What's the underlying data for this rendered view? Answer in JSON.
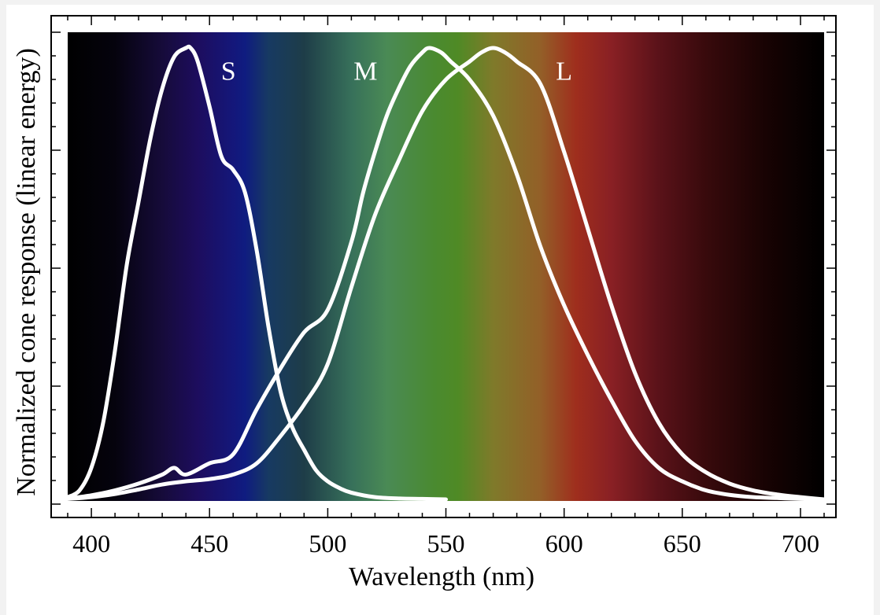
{
  "chart_data": {
    "type": "line",
    "title": "",
    "xlabel": "Wavelength (nm)",
    "ylabel": "Normalized cone response (linear energy)",
    "xlim": [
      383,
      715
    ],
    "ylim": [
      0,
      1
    ],
    "x_ticks": [
      400,
      450,
      500,
      550,
      600,
      650,
      700
    ],
    "x_tick_labels": [
      "400",
      "450",
      "500",
      "550",
      "600",
      "650",
      "700"
    ],
    "y_tick_labels": [],
    "grid": false,
    "legend": "labels placed next to curve peaks",
    "background": "visible spectrum color gradient from 390 nm to 710 nm",
    "spectrum_stops": [
      {
        "nm": 390,
        "color": "#000000"
      },
      {
        "nm": 410,
        "color": "#05030d"
      },
      {
        "nm": 430,
        "color": "#160b3a"
      },
      {
        "nm": 445,
        "color": "#1d0d5e"
      },
      {
        "nm": 460,
        "color": "#14177a"
      },
      {
        "nm": 465,
        "color": "#0f1c80"
      },
      {
        "nm": 475,
        "color": "#173a62"
      },
      {
        "nm": 490,
        "color": "#1e3d48"
      },
      {
        "nm": 510,
        "color": "#37705a"
      },
      {
        "nm": 525,
        "color": "#4a8a55"
      },
      {
        "nm": 545,
        "color": "#4a8a30"
      },
      {
        "nm": 555,
        "color": "#4f8a25"
      },
      {
        "nm": 570,
        "color": "#7f7a2a"
      },
      {
        "nm": 590,
        "color": "#935f28"
      },
      {
        "nm": 605,
        "color": "#9f2e1d"
      },
      {
        "nm": 620,
        "color": "#892024"
      },
      {
        "nm": 640,
        "color": "#5a1219"
      },
      {
        "nm": 660,
        "color": "#380a0c"
      },
      {
        "nm": 685,
        "color": "#180303"
      },
      {
        "nm": 710,
        "color": "#000000"
      }
    ],
    "series": [
      {
        "name": "S",
        "label_at": [
          458,
          0.95
        ],
        "x": [
          390,
          395,
          400,
          405,
          410,
          415,
          420,
          425,
          430,
          435,
          440,
          442,
          445,
          450,
          455,
          460,
          465,
          470,
          475,
          480,
          485,
          490,
          495,
          500,
          505,
          510,
          520,
          530,
          540,
          550
        ],
        "values": [
          0.005,
          0.02,
          0.07,
          0.17,
          0.33,
          0.52,
          0.66,
          0.8,
          0.91,
          0.98,
          1.0,
          1.0,
          0.97,
          0.87,
          0.76,
          0.73,
          0.68,
          0.55,
          0.38,
          0.24,
          0.16,
          0.11,
          0.065,
          0.04,
          0.025,
          0.015,
          0.005,
          0.002,
          0.001,
          0.0
        ]
      },
      {
        "name": "M",
        "label_at": [
          516,
          0.95
        ],
        "x": [
          390,
          400,
          410,
          420,
          430,
          435,
          440,
          450,
          460,
          470,
          480,
          490,
          500,
          510,
          515,
          520,
          525,
          530,
          535,
          540,
          543,
          548,
          552,
          560,
          570,
          580,
          590,
          600,
          610,
          620,
          630,
          640,
          650,
          660,
          670,
          680,
          690,
          700,
          710
        ],
        "values": [
          0.002,
          0.009,
          0.02,
          0.035,
          0.055,
          0.07,
          0.055,
          0.08,
          0.1,
          0.2,
          0.29,
          0.37,
          0.42,
          0.57,
          0.68,
          0.77,
          0.85,
          0.91,
          0.96,
          0.99,
          1.0,
          0.99,
          0.97,
          0.93,
          0.85,
          0.72,
          0.56,
          0.43,
          0.32,
          0.22,
          0.13,
          0.07,
          0.04,
          0.02,
          0.01,
          0.005,
          0.003,
          0.001,
          0.0
        ]
      },
      {
        "name": "L",
        "label_at": [
          600,
          0.95
        ],
        "x": [
          390,
          400,
          410,
          420,
          430,
          440,
          450,
          460,
          470,
          480,
          490,
          500,
          510,
          520,
          530,
          540,
          550,
          560,
          565,
          570,
          575,
          580,
          590,
          600,
          610,
          620,
          630,
          640,
          650,
          660,
          670,
          680,
          690,
          700,
          710
        ],
        "values": [
          0.001,
          0.005,
          0.012,
          0.022,
          0.033,
          0.04,
          0.045,
          0.055,
          0.08,
          0.14,
          0.21,
          0.3,
          0.47,
          0.63,
          0.75,
          0.86,
          0.93,
          0.97,
          0.99,
          1.0,
          0.99,
          0.97,
          0.92,
          0.77,
          0.6,
          0.43,
          0.28,
          0.17,
          0.1,
          0.06,
          0.035,
          0.02,
          0.011,
          0.005,
          0.0
        ]
      }
    ]
  }
}
